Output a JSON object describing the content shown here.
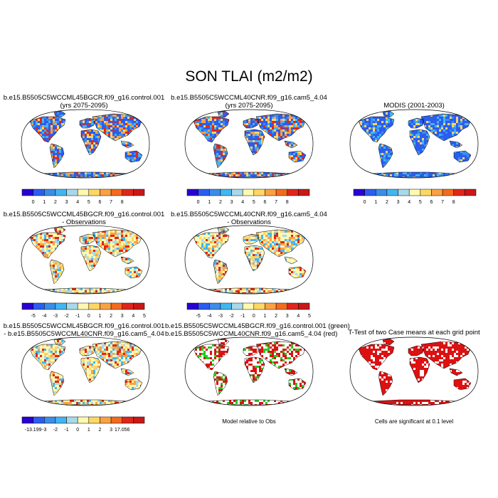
{
  "title": "SON TLAI (m2/m2)",
  "panels": [
    {
      "id": "r1c1",
      "type": "map",
      "title_lines": [
        "b.e15.B5505C5WCCML45BGCR.f09_g16.control.001",
        "(yrs 2075-2095)"
      ],
      "colorbar": "abs"
    },
    {
      "id": "r1c2",
      "type": "map",
      "title_lines": [
        "b.e15.B5505C5WCCML40CNR.f09_g16.cam5_4.04",
        "(yrs 2075-2095)"
      ],
      "colorbar": "abs"
    },
    {
      "id": "r1c3",
      "type": "map",
      "title_lines": [
        "MODIS (2001-2003)"
      ],
      "colorbar": "abs"
    },
    {
      "id": "r2c1",
      "type": "map",
      "title_lines": [
        "b.e15.B5505C5WCCML45BGCR.f09_g16.control.001",
        "- Observations"
      ],
      "colorbar": "diff"
    },
    {
      "id": "r2c2",
      "type": "map",
      "title_lines": [
        "b.e15.B5505C5WCCML40CNR.f09_g16.cam5_4.04",
        "- Observations"
      ],
      "colorbar": "diff"
    },
    {
      "id": "r3c1",
      "type": "map",
      "title_lines": [
        "b.e15.B5505C5WCCML45BGCR.f09_g16.control.001",
        "- b.e15.B5505C5WCCML40CNR.f09_g16.cam5_4.04"
      ],
      "colorbar": "casediff"
    },
    {
      "id": "r3c2",
      "type": "map",
      "title_lines": [
        "b.e15.B5505C5WCCML45BGCR.f09_g16.control.001 (green)",
        "b.e15.B5505C5WCCML40CNR.f09_g16.cam5_4.04 (red)"
      ],
      "note": "Model relative to Obs"
    },
    {
      "id": "r3c3",
      "type": "map",
      "title_lines": [
        "T-Test of two Case means at each grid point"
      ],
      "note": "Cells are significant at 0.1 level"
    }
  ],
  "chart_data": {
    "type": "heatmap",
    "title": "SON TLAI (m2/m2)",
    "colorbars": {
      "abs": {
        "colors": [
          "#2a00d4",
          "#2c5cf0",
          "#3b8de8",
          "#41b6f0",
          "#a8d8ea",
          "#fff8b0",
          "#fdd664",
          "#fba144",
          "#f46a1e",
          "#e0261a",
          "#c81818"
        ],
        "labels": [
          "0",
          "1",
          "2",
          "3",
          "4",
          "5",
          "6",
          "7",
          "8"
        ]
      },
      "diff": {
        "colors": [
          "#2a00d4",
          "#2c5cf0",
          "#3b8de8",
          "#41b6f0",
          "#a8d8ea",
          "#fff8b0",
          "#fdd664",
          "#fba144",
          "#f46a1e",
          "#e0261a",
          "#c81818"
        ],
        "labels": [
          "-5",
          "-4",
          "-3",
          "-2",
          "-1",
          "0",
          "1",
          "2",
          "3",
          "4",
          "5"
        ]
      },
      "casediff": {
        "colors": [
          "#2a00d4",
          "#2c5cf0",
          "#3b8de8",
          "#41b6f0",
          "#a8d8ea",
          "#fff8b0",
          "#fdd664",
          "#fba144",
          "#f46a1e",
          "#e0261a",
          "#c81818"
        ],
        "labels": [
          "-13.199",
          "-3",
          "-2",
          "-1",
          "0",
          "1",
          "2",
          "3",
          "17.056"
        ]
      }
    }
  }
}
